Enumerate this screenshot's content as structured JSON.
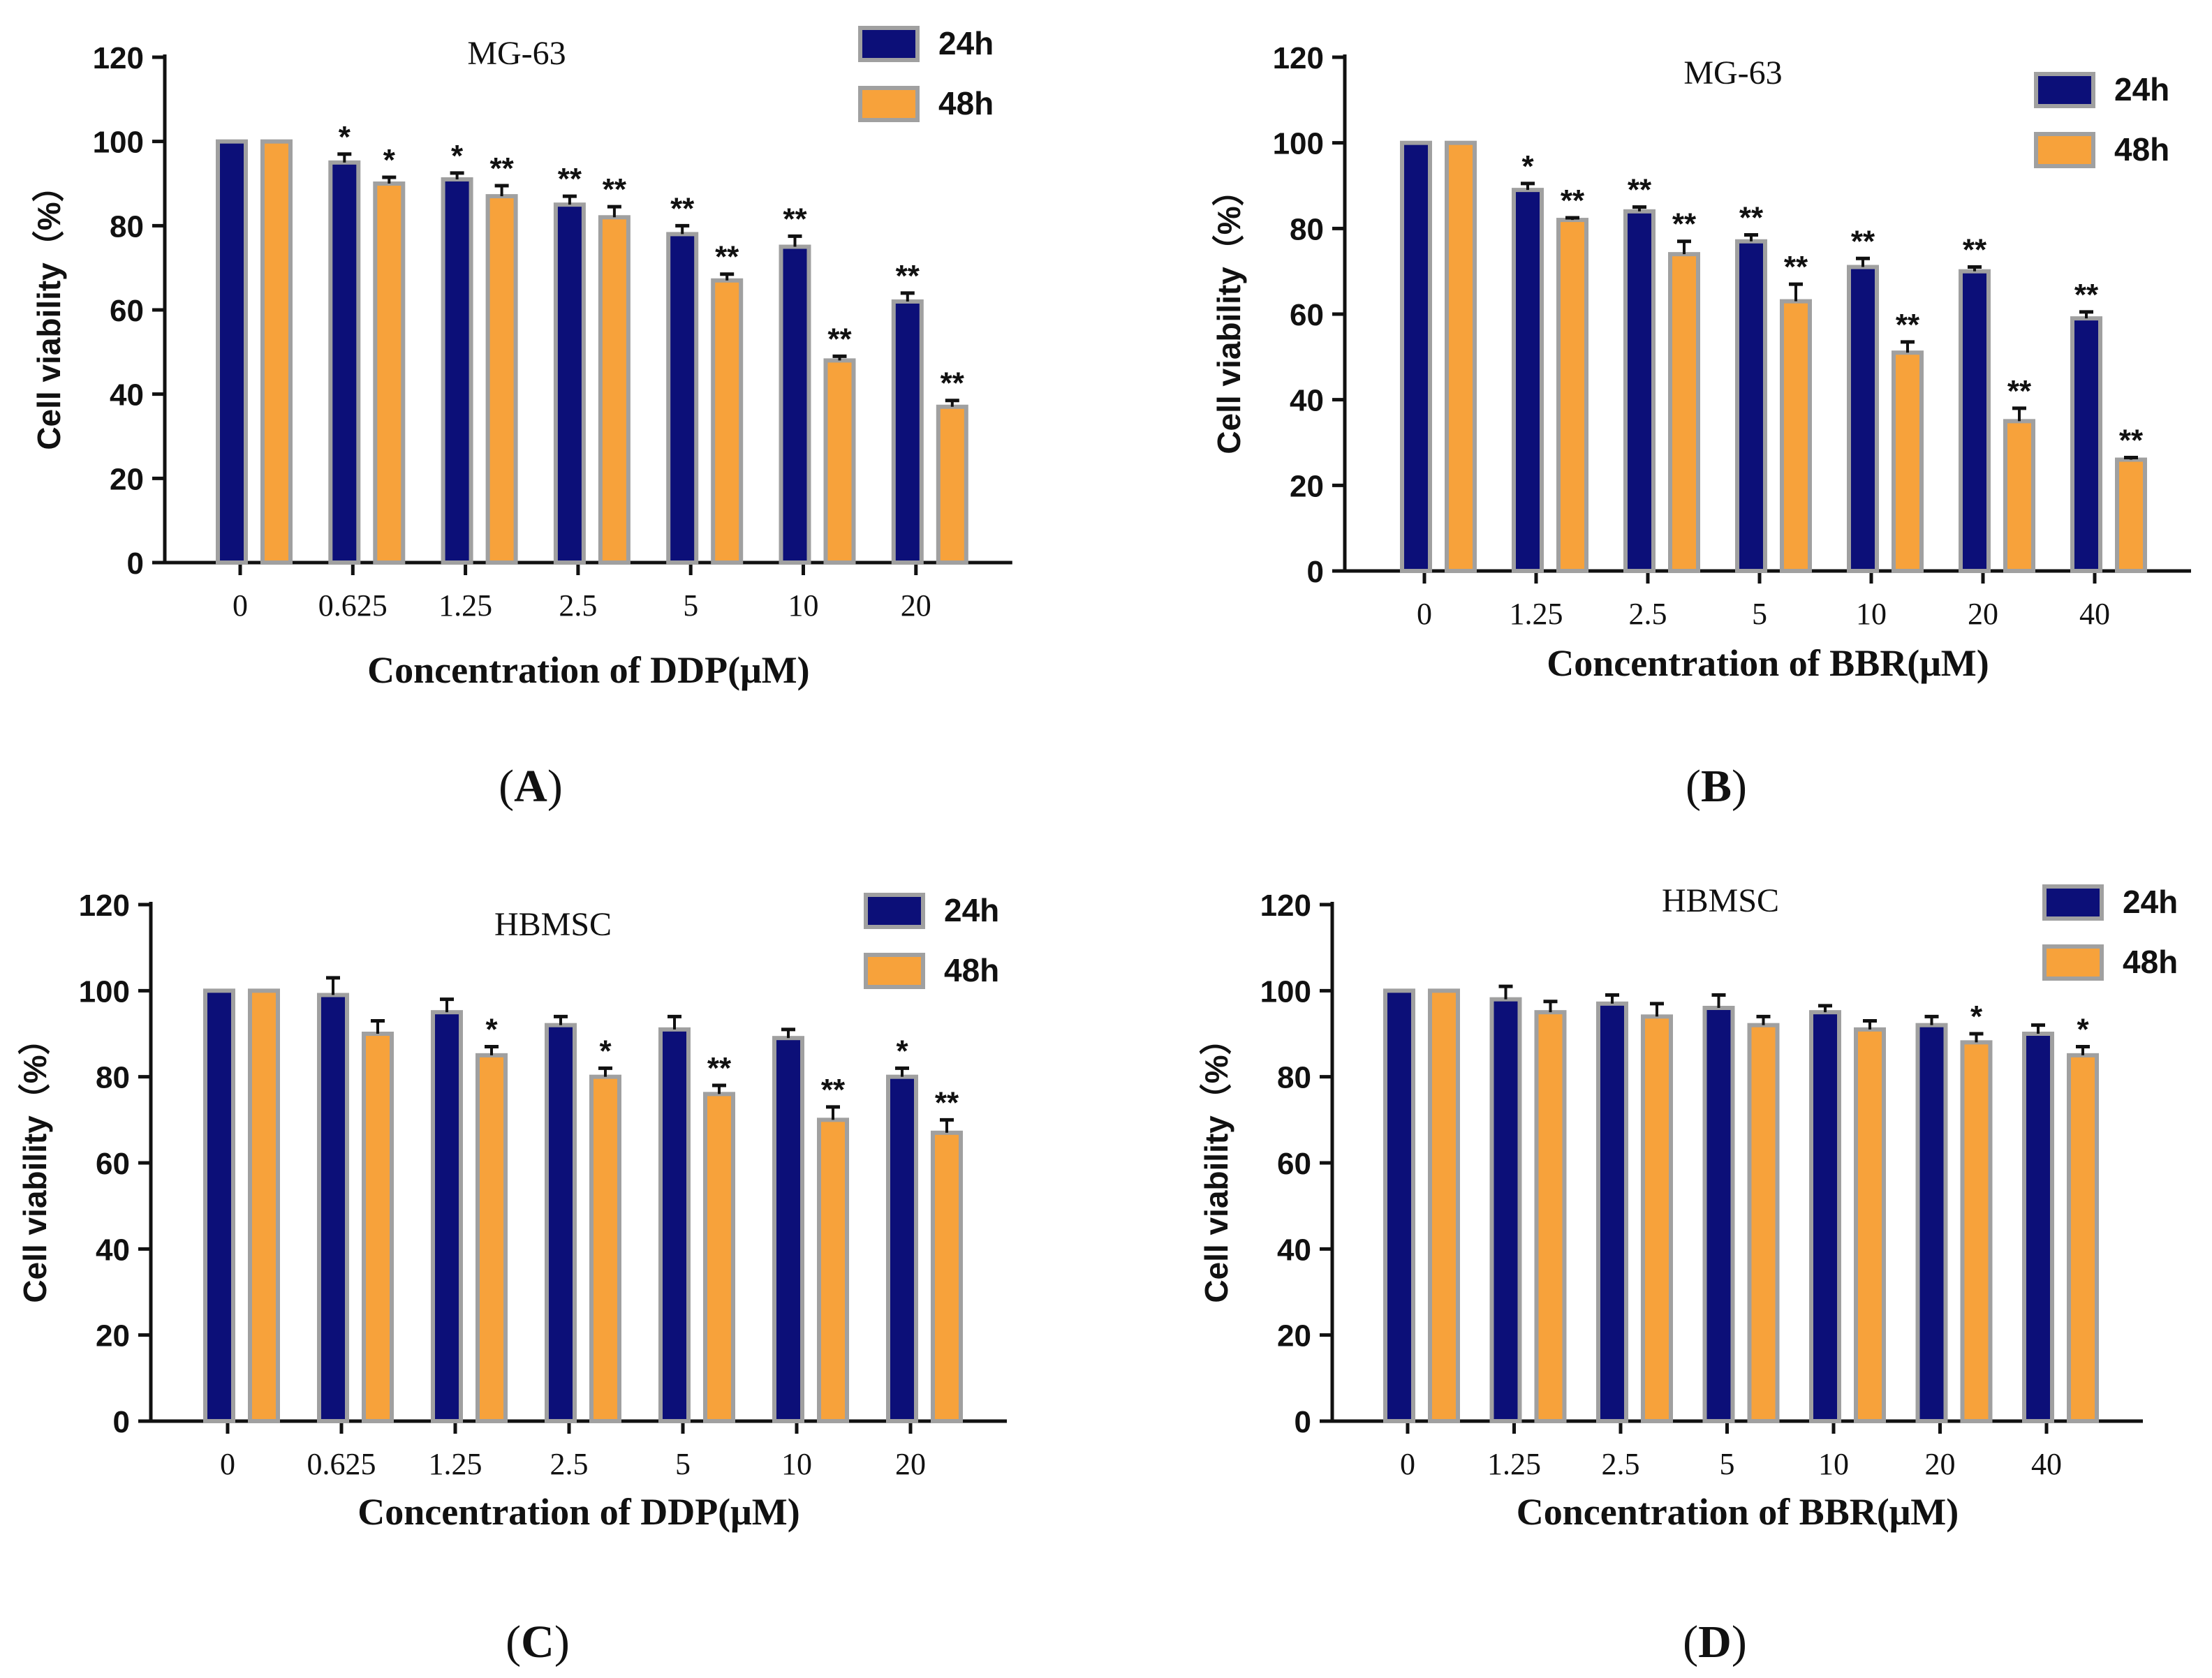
{
  "colors": {
    "s24": "#0c0f78",
    "s48": "#f7a23b",
    "bar_border": "#a0a0a0",
    "axis": "#111111",
    "errorbar": "#111111"
  },
  "chart_data": [
    {
      "type": "bar",
      "panel_label": "A",
      "title": "MG-63",
      "xlabel": "Concentration of DDP(μM)",
      "ylabel": "Cell viability（%）",
      "ylim": [
        0,
        120
      ],
      "yticks": [
        "0",
        "20",
        "40",
        "60",
        "80",
        "100",
        "120"
      ],
      "categories": [
        "0",
        "0.625",
        "1.25",
        "2.5",
        "5",
        "10",
        "20"
      ],
      "legend_position": "top-right",
      "series": [
        {
          "name": "24h",
          "values": [
            100,
            95,
            91,
            85,
            78,
            75,
            62
          ],
          "errors": [
            0,
            2,
            1.5,
            2,
            2,
            2.5,
            2
          ],
          "sig": [
            "",
            "*",
            "*",
            "**",
            "**",
            "**",
            "**"
          ]
        },
        {
          "name": "48h",
          "values": [
            100,
            90,
            87,
            82,
            67,
            48,
            37
          ],
          "errors": [
            0,
            1.5,
            2.5,
            2.5,
            1.5,
            1,
            1.5
          ],
          "sig": [
            "",
            "*",
            "**",
            "**",
            "**",
            "**",
            "**"
          ]
        }
      ]
    },
    {
      "type": "bar",
      "panel_label": "B",
      "title": "MG-63",
      "xlabel": "Concentration of BBR(μM)",
      "ylabel": "Cell viability（%）",
      "ylim": [
        0,
        120
      ],
      "yticks": [
        "0",
        "20",
        "40",
        "60",
        "80",
        "100",
        "120"
      ],
      "categories": [
        "0",
        "1.25",
        "2.5",
        "5",
        "10",
        "20",
        "40"
      ],
      "legend_position": "top-right",
      "series": [
        {
          "name": "24h",
          "values": [
            100,
            89,
            84,
            77,
            71,
            70,
            59
          ],
          "errors": [
            0,
            1.5,
            1,
            1.5,
            2,
            1,
            1.5
          ],
          "sig": [
            "",
            "*",
            "**",
            "**",
            "**",
            "**",
            "**"
          ]
        },
        {
          "name": "48h",
          "values": [
            100,
            82,
            74,
            63,
            51,
            35,
            26
          ],
          "errors": [
            0,
            0.5,
            3,
            4,
            2.5,
            3,
            0.5
          ],
          "sig": [
            "",
            "**",
            "**",
            "**",
            "**",
            "**",
            "**"
          ]
        }
      ]
    },
    {
      "type": "bar",
      "panel_label": "C",
      "title": "HBMSC",
      "xlabel": "Concentration of DDP(μM)",
      "ylabel": "Cell viability（%）",
      "ylim": [
        0,
        120
      ],
      "yticks": [
        "0",
        "20",
        "40",
        "60",
        "80",
        "100",
        "120"
      ],
      "categories": [
        "0",
        "0.625",
        "1.25",
        "2.5",
        "5",
        "10",
        "20"
      ],
      "legend_position": "top-right",
      "series": [
        {
          "name": "24h",
          "values": [
            100,
            99,
            95,
            92,
            91,
            89,
            80
          ],
          "errors": [
            0,
            4,
            3,
            2,
            3,
            2,
            2
          ],
          "sig": [
            "",
            "",
            "",
            "",
            "",
            "",
            "*"
          ]
        },
        {
          "name": "48h",
          "values": [
            100,
            90,
            85,
            80,
            76,
            70,
            67
          ],
          "errors": [
            0,
            3,
            2,
            2,
            2,
            3,
            3
          ],
          "sig": [
            "",
            "",
            "*",
            "*",
            "**",
            "**",
            "**"
          ]
        }
      ]
    },
    {
      "type": "bar",
      "panel_label": "D",
      "title": "HBMSC",
      "xlabel": "Concentration of BBR(μM)",
      "ylabel": "Cell viability（%）",
      "ylim": [
        0,
        120
      ],
      "yticks": [
        "0",
        "20",
        "40",
        "60",
        "80",
        "100",
        "120"
      ],
      "categories": [
        "0",
        "1.25",
        "2.5",
        "5",
        "10",
        "20",
        "40"
      ],
      "legend_position": "top-right",
      "series": [
        {
          "name": "24h",
          "values": [
            100,
            98,
            97,
            96,
            95,
            92,
            90
          ],
          "errors": [
            0,
            3,
            2,
            3,
            1.5,
            2,
            2
          ],
          "sig": [
            "",
            "",
            "",
            "",
            "",
            "",
            ""
          ]
        },
        {
          "name": "48h",
          "values": [
            100,
            95,
            94,
            92,
            91,
            88,
            85
          ],
          "errors": [
            0,
            2.5,
            3,
            2,
            2,
            2,
            2
          ],
          "sig": [
            "",
            "",
            "",
            "",
            "",
            "*",
            "*"
          ]
        }
      ]
    }
  ]
}
